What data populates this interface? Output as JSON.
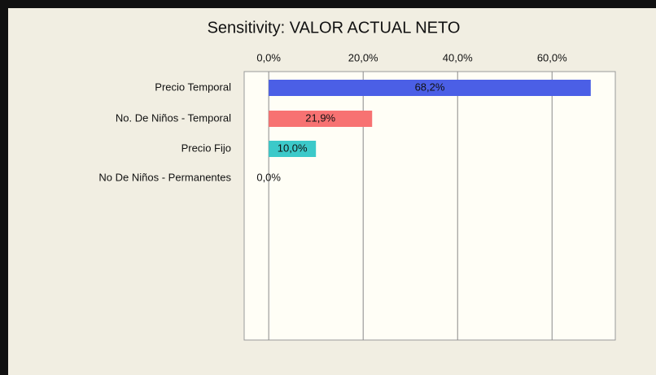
{
  "chart_data": {
    "type": "bar",
    "orientation": "horizontal",
    "title": "Sensitivity: VALOR ACTUAL NETO",
    "categories": [
      "Precio Temporal",
      "No. De Niños - Temporal",
      "Precio Fijo",
      "No De Niños - Permanentes"
    ],
    "values": [
      68.2,
      21.9,
      10.0,
      0.0
    ],
    "value_labels": [
      "68,2%",
      "21,9%",
      "10,0%",
      "0,0%"
    ],
    "colors": [
      "#4b5fe6",
      "#f77272",
      "#3cc9c9",
      "#888888"
    ],
    "xlim": [
      -5.2,
      73.4
    ],
    "xticks": [
      {
        "value": 0,
        "label": "0,0%"
      },
      {
        "value": 20,
        "label": "20,0%"
      },
      {
        "value": 40,
        "label": "40,0%"
      },
      {
        "value": 60,
        "label": "60,0%"
      }
    ],
    "grid": true
  }
}
